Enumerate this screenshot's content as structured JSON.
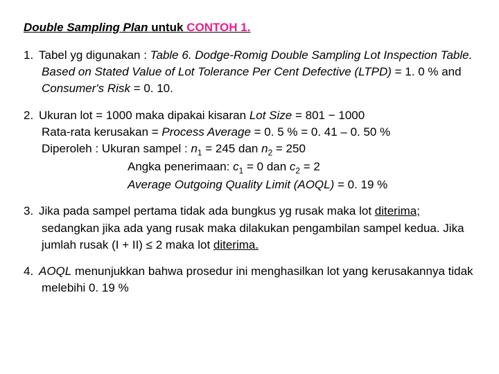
{
  "title_italic": "Double Sampling Plan",
  "title_mid": " untuk ",
  "title_pink": "CONTOH 1.",
  "items": {
    "1": {
      "num": "1.",
      "a": "Tabel yg digunakan : ",
      "b": "Table 6. Dodge-Romig Double Sampling Lot Inspection Table. Based on Stated Value of Lot Tolerance Per Cent Defective (LTPD)",
      "c": " = 1. 0 % and ",
      "d": "Consumer's Risk",
      "e": " = 0. 10."
    },
    "2": {
      "num": "2.",
      "l1a": "Ukuran lot = 1000  maka dipakai kisaran ",
      "l1b": "Lot Size",
      "l1c": " = 801 − 1000",
      "l2a": "Rata-rata kerusakan = ",
      "l2b": "Process Average",
      "l2c": "  = 0. 5 % = 0. 41 – 0. 50 %",
      "l3a": "Diperoleh : Ukuran sampel : ",
      "l3n1": "n",
      "l3s1": "1",
      "l3b": " = 245  dan ",
      "l3n2": "n",
      "l3s2": "2",
      "l3c": " = 250",
      "l4a": "Angka penerimaan: ",
      "l4c1": "c",
      "l4s1": "1",
      "l4b": " = 0  dan ",
      "l4c2": "c",
      "l4s2": "2",
      "l4c": " = 2",
      "l5a": "Average Outgoing Quality Limit  (AOQL)",
      "l5b": " = 0. 19 %"
    },
    "3": {
      "num": "3.",
      "a": "Jika pada sampel pertama tidak ada bungkus yg rusak maka lot ",
      "b": "diterima;",
      "c": " sedangkan jika ada yang rusak maka dilakukan pengambilan sampel kedua.  Jika jumlah rusak (I + II) ≤ 2 maka lot ",
      "d": "diterima."
    },
    "4": {
      "num": "4.",
      "a": "AOQL",
      "b": " menunjukkan bahwa prosedur ini menghasilkan lot yang kerusakannya tidak melebihi 0. 19 %"
    }
  }
}
